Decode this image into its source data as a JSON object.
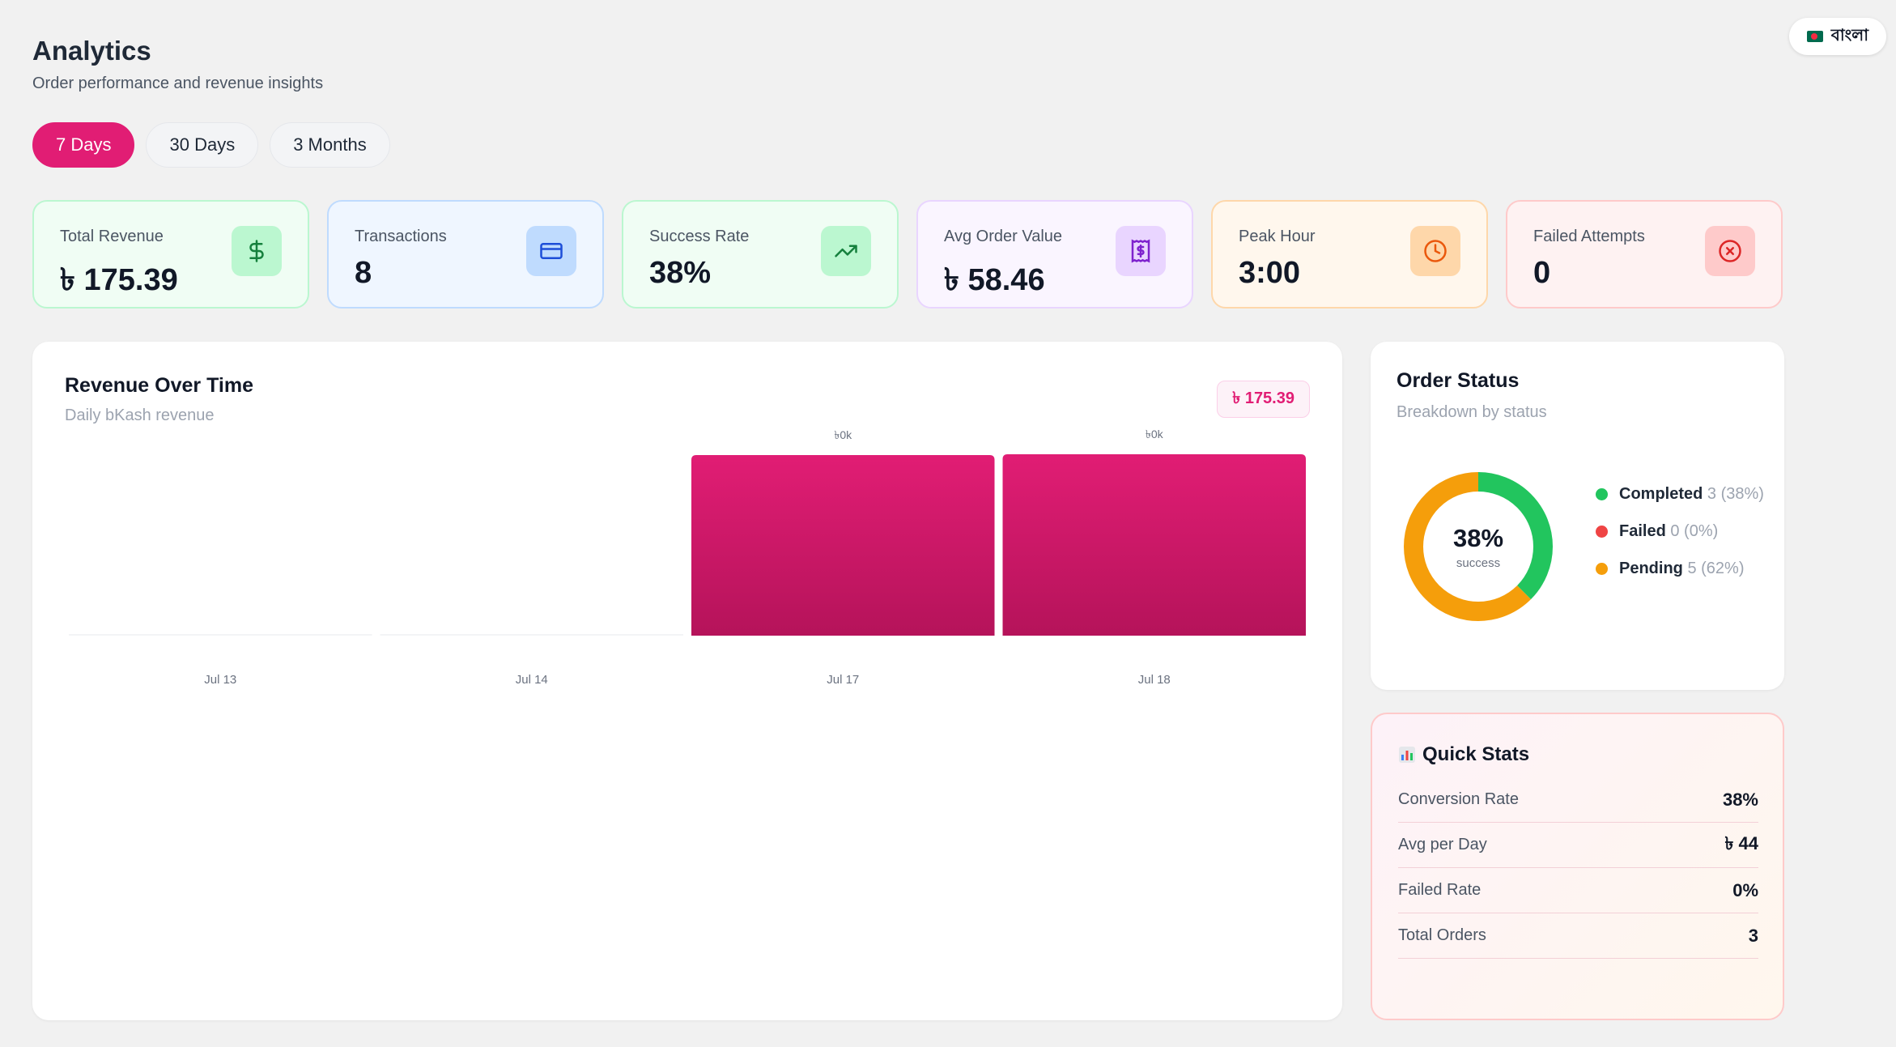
{
  "header": {
    "title": "Analytics",
    "subtitle": "Order performance and revenue insights",
    "language_label": "বাংলা"
  },
  "ranges": [
    {
      "label": "7 Days",
      "active": true
    },
    {
      "label": "30 Days",
      "active": false
    },
    {
      "label": "3 Months",
      "active": false
    }
  ],
  "kpis": [
    {
      "label": "Total Revenue",
      "value": "৳ 175.39",
      "icon": "dollar-icon"
    },
    {
      "label": "Transactions",
      "value": "8",
      "icon": "credit-card-icon"
    },
    {
      "label": "Success Rate",
      "value": "38%",
      "icon": "trending-up-icon"
    },
    {
      "label": "Avg Order Value",
      "value": "৳ 58.46",
      "icon": "receipt-icon"
    },
    {
      "label": "Peak Hour",
      "value": "3:00",
      "icon": "clock-icon"
    },
    {
      "label": "Failed Attempts",
      "value": "0",
      "icon": "x-circle-icon"
    }
  ],
  "revenue_chart": {
    "title": "Revenue Over Time",
    "subtitle": "Daily bKash revenue",
    "total_badge": "৳ 175.39"
  },
  "chart_data": {
    "type": "bar",
    "categories": [
      "Jul 13",
      "Jul 14",
      "Jul 17",
      "Jul 18"
    ],
    "values": [
      0,
      0,
      87.5,
      87.9
    ],
    "data_labels": [
      "",
      "",
      "৳0k",
      "৳0k"
    ],
    "color": "#e11d74"
  },
  "order_status": {
    "title": "Order Status",
    "subtitle": "Breakdown by status",
    "center_value": "38%",
    "center_label": "success",
    "items": [
      {
        "name": "Completed",
        "count": "3 (38%)",
        "color": "#22c55e",
        "fraction": 0.375
      },
      {
        "name": "Failed",
        "count": "0 (0%)",
        "color": "#ef4444",
        "fraction": 0
      },
      {
        "name": "Pending",
        "count": "5 (62%)",
        "color": "#f59e0b",
        "fraction": 0.625
      }
    ]
  },
  "quick_stats": {
    "icon": "bar-chart-emoji-icon",
    "title": "Quick Stats",
    "rows": [
      {
        "label": "Conversion Rate",
        "value": "38%"
      },
      {
        "label": "Avg per Day",
        "value": "৳ 44"
      },
      {
        "label": "Failed Rate",
        "value": "0%"
      },
      {
        "label": "Total Orders",
        "value": "3"
      }
    ]
  }
}
